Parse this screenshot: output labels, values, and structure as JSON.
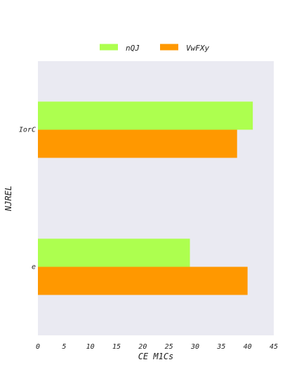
{
  "chart_data": {
    "type": "bar",
    "orientation": "horizontal",
    "categories": [
      "IorC",
      "e"
    ],
    "series": [
      {
        "name": "nQJ",
        "values": [
          41,
          29
        ],
        "color": "#adff4f"
      },
      {
        "name": "VwFXy",
        "values": [
          38,
          40
        ],
        "color": "#ff9800"
      }
    ],
    "xlabel": "CE M1Cs",
    "ylabel": "NJREL",
    "xlim": [
      0,
      45
    ],
    "xticks": [
      "0",
      "5",
      "10",
      "15",
      "20",
      "25",
      "30",
      "35",
      "40",
      "45"
    ],
    "grid": false,
    "legend_position": "top-center",
    "plot_background": "#eaeaf2"
  }
}
